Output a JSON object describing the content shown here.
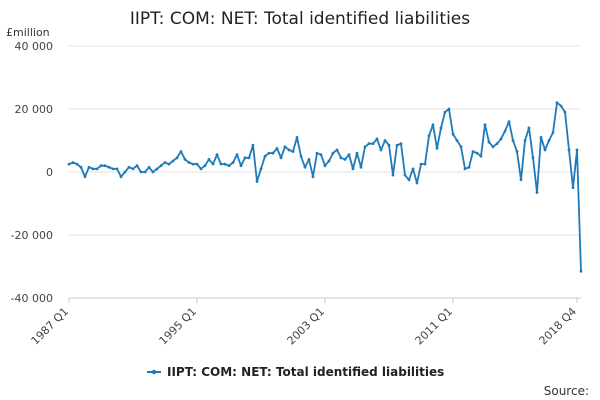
{
  "chart_data": {
    "type": "line",
    "title": "IIPT: COM: NET: Total identified liabilities",
    "unit_label": "£million",
    "source_label": "Source:",
    "ylim": [
      -40000,
      40000
    ],
    "y_ticks": [
      40000,
      20000,
      0,
      -20000,
      -40000
    ],
    "y_tick_labels": [
      "40 000",
      "20 000",
      "0",
      "-20 000",
      "-40 000"
    ],
    "x_tick_labels": [
      "1987 Q1",
      "1995 Q1",
      "2003 Q1",
      "2011 Q1",
      "2018 Q4"
    ],
    "grid": true,
    "legend_position": "bottom",
    "color": "#1f7ab8",
    "series": [
      {
        "name": "IIPT: COM: NET: Total identified liabilities",
        "start": "1987 Q1",
        "frequency": "quarterly",
        "values": [
          2500,
          3000,
          2500,
          1500,
          -1500,
          1500,
          1000,
          1000,
          2000,
          2000,
          1500,
          1000,
          1000,
          -1500,
          0,
          1500,
          1000,
          2000,
          0,
          0,
          1500,
          0,
          1000,
          2000,
          3000,
          2500,
          3500,
          4500,
          6500,
          4000,
          3000,
          2500,
          2500,
          1000,
          2000,
          4000,
          2500,
          5500,
          2500,
          2500,
          2000,
          3000,
          5500,
          2000,
          4500,
          4500,
          8500,
          -3000,
          1000,
          5000,
          6000,
          6000,
          7500,
          4500,
          8000,
          7000,
          6500,
          11000,
          5000,
          1500,
          4000,
          -1500,
          6000,
          5500,
          2000,
          3500,
          6000,
          7000,
          4500,
          4000,
          5500,
          1000,
          6000,
          1500,
          8000,
          9000,
          9000,
          10500,
          7000,
          10000,
          8500,
          -1000,
          8500,
          9000,
          -1000,
          -2500,
          1000,
          -3500,
          2500,
          2500,
          11500,
          15000,
          7500,
          14000,
          19000,
          20000,
          12000,
          10000,
          8000,
          1000,
          1500,
          6500,
          6000,
          5000,
          15000,
          9500,
          8000,
          9000,
          10500,
          13000,
          16000,
          10000,
          6500,
          -2500,
          10000,
          14000,
          4500,
          -6500,
          11000,
          7000,
          10000,
          12500,
          22000,
          21000,
          19000,
          7000,
          -5000,
          7000,
          -31500
        ]
      }
    ]
  }
}
